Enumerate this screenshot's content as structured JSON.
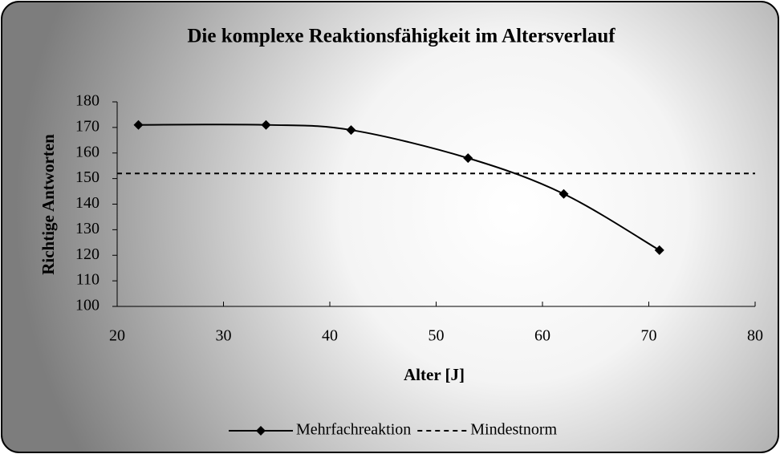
{
  "chart_data": {
    "type": "line",
    "title": "Die komplexe Reaktionsfähigkeit im Altersverlauf",
    "xlabel": "Alter [J]",
    "ylabel": "Richtige Antworten",
    "xlim": [
      20,
      80
    ],
    "xticks": [
      20,
      30,
      40,
      50,
      60,
      70,
      80
    ],
    "ylim": [
      100,
      180
    ],
    "yticks": [
      100,
      110,
      120,
      130,
      140,
      150,
      160,
      170,
      180
    ],
    "legend": "bottom",
    "series": [
      {
        "name": "Mehrfachreaktion",
        "color": "#000000",
        "style": "solid-smooth-diamond",
        "x": [
          22,
          34,
          42,
          53,
          62,
          71
        ],
        "values": [
          171,
          171,
          169,
          158,
          144,
          122
        ]
      },
      {
        "name": "Mindestnorm",
        "color": "#000000",
        "style": "dashed",
        "x": [
          20,
          80
        ],
        "values": [
          152,
          152
        ]
      }
    ]
  }
}
